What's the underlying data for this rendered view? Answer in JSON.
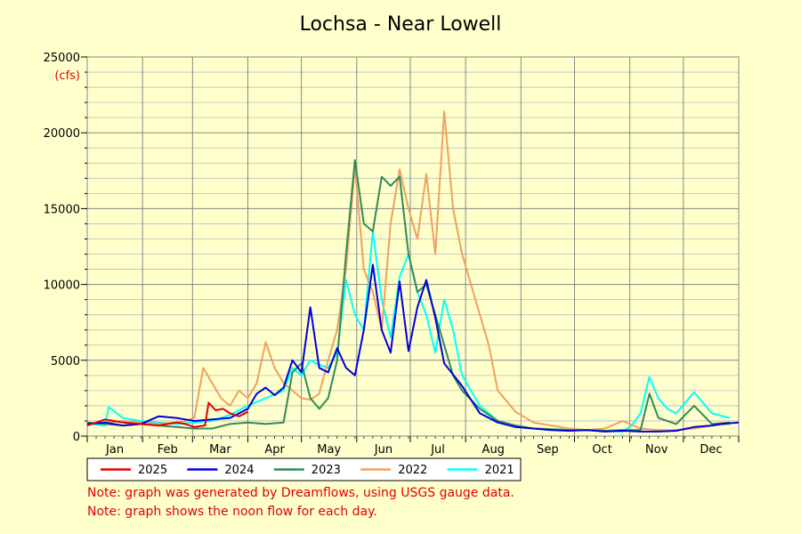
{
  "chart_data": {
    "type": "line",
    "title": "Lochsa - Near Lowell",
    "ylabel_unit": "(cfs)",
    "xlabel": "",
    "x_categories": [
      "Jan",
      "Feb",
      "Mar",
      "Apr",
      "May",
      "Jun",
      "Jul",
      "Aug",
      "Sep",
      "Oct",
      "Nov",
      "Dec"
    ],
    "ylim": [
      0,
      25000
    ],
    "y_ticks": [
      0,
      5000,
      10000,
      15000,
      20000,
      25000
    ],
    "grid": true,
    "legend_position": "bottom",
    "series": [
      {
        "name": "2025",
        "color": "#dd0000",
        "x": [
          0,
          10,
          20,
          30,
          40,
          45,
          50,
          55,
          60,
          66,
          68,
          72,
          76,
          80,
          85,
          90
        ],
        "y": [
          700,
          1100,
          900,
          800,
          700,
          800,
          900,
          800,
          600,
          700,
          2200,
          1700,
          1800,
          1500,
          1300,
          1600
        ]
      },
      {
        "name": "2024",
        "color": "#0000dd",
        "x": [
          0,
          10,
          20,
          30,
          40,
          50,
          55,
          60,
          70,
          80,
          90,
          95,
          100,
          105,
          110,
          115,
          120,
          125,
          130,
          135,
          140,
          145,
          150,
          155,
          160,
          165,
          170,
          175,
          180,
          185,
          190,
          195,
          200,
          210,
          220,
          230,
          240,
          250,
          260,
          270,
          280,
          290,
          300,
          310,
          320,
          330,
          340,
          350,
          355,
          365
        ],
        "y": [
          800,
          900,
          700,
          800,
          1300,
          1200,
          1100,
          1000,
          1100,
          1200,
          1800,
          2800,
          3200,
          2700,
          3200,
          5000,
          4200,
          8500,
          4500,
          4200,
          5800,
          4500,
          4000,
          7000,
          11300,
          7000,
          5500,
          10200,
          5600,
          8500,
          10300,
          7800,
          4800,
          3300,
          1500,
          900,
          600,
          500,
          400,
          350,
          400,
          300,
          350,
          300,
          300,
          350,
          600,
          700,
          800,
          900
        ]
      },
      {
        "name": "2023",
        "color": "#2e8b57",
        "x": [
          0,
          10,
          20,
          30,
          40,
          50,
          60,
          70,
          80,
          90,
          100,
          110,
          115,
          120,
          125,
          130,
          135,
          140,
          145,
          150,
          155,
          160,
          165,
          170,
          175,
          180,
          185,
          190,
          195,
          200,
          205,
          210,
          220,
          230,
          240,
          250,
          260,
          270,
          280,
          290,
          300,
          310,
          315,
          320,
          330,
          340,
          350,
          360
        ],
        "y": [
          900,
          800,
          700,
          800,
          700,
          600,
          500,
          500,
          800,
          900,
          800,
          900,
          4200,
          4800,
          2500,
          1800,
          2500,
          5000,
          12000,
          18200,
          14000,
          13500,
          17100,
          16500,
          17100,
          12000,
          9500,
          10000,
          8000,
          6000,
          4000,
          3000,
          1800,
          1000,
          700,
          500,
          450,
          400,
          400,
          350,
          400,
          400,
          2800,
          1200,
          800,
          2000,
          800,
          900
        ]
      },
      {
        "name": "2022",
        "color": "#f0a060",
        "x": [
          0,
          10,
          20,
          30,
          40,
          50,
          55,
          60,
          65,
          70,
          75,
          80,
          85,
          90,
          95,
          100,
          105,
          110,
          115,
          120,
          125,
          130,
          135,
          140,
          145,
          150,
          155,
          160,
          165,
          170,
          175,
          180,
          185,
          190,
          195,
          200,
          205,
          210,
          215,
          220,
          225,
          230,
          240,
          250,
          260,
          270,
          280,
          290,
          300,
          310,
          320,
          330,
          340,
          350,
          360
        ],
        "y": [
          800,
          900,
          1000,
          900,
          800,
          900,
          1000,
          1200,
          4500,
          3500,
          2500,
          2000,
          3000,
          2500,
          3500,
          6200,
          4500,
          3500,
          3000,
          2500,
          2400,
          2800,
          5000,
          7000,
          11000,
          17800,
          11000,
          9500,
          7000,
          14000,
          17600,
          15000,
          13000,
          17300,
          12000,
          21400,
          15000,
          12000,
          10000,
          8000,
          6000,
          3000,
          1600,
          900,
          700,
          500,
          400,
          500,
          1000,
          500,
          400,
          400,
          500,
          700,
          800
        ]
      },
      {
        "name": "2021",
        "color": "#00ffff",
        "x": [
          0,
          10,
          12,
          20,
          30,
          40,
          50,
          60,
          70,
          80,
          90,
          100,
          110,
          115,
          120,
          125,
          130,
          135,
          140,
          145,
          150,
          155,
          160,
          165,
          170,
          175,
          180,
          185,
          190,
          195,
          200,
          205,
          210,
          220,
          230,
          240,
          250,
          260,
          270,
          280,
          290,
          300,
          305,
          310,
          315,
          320,
          325,
          330,
          340,
          350,
          360
        ],
        "y": [
          800,
          700,
          1900,
          1200,
          1000,
          900,
          800,
          900,
          1000,
          1400,
          2000,
          2500,
          3000,
          4500,
          4000,
          5000,
          4700,
          4500,
          5500,
          10300,
          8000,
          7000,
          13500,
          9000,
          6500,
          10500,
          12000,
          9500,
          8000,
          5500,
          9000,
          7000,
          4000,
          2000,
          1000,
          600,
          500,
          450,
          400,
          400,
          350,
          300,
          700,
          1500,
          3900,
          2500,
          1800,
          1500,
          2900,
          1500,
          1200
        ]
      }
    ],
    "notes": [
      "Note: graph was generated by Dreamflows, using USGS gauge data.",
      "Note: graph shows the noon flow for each day."
    ]
  }
}
